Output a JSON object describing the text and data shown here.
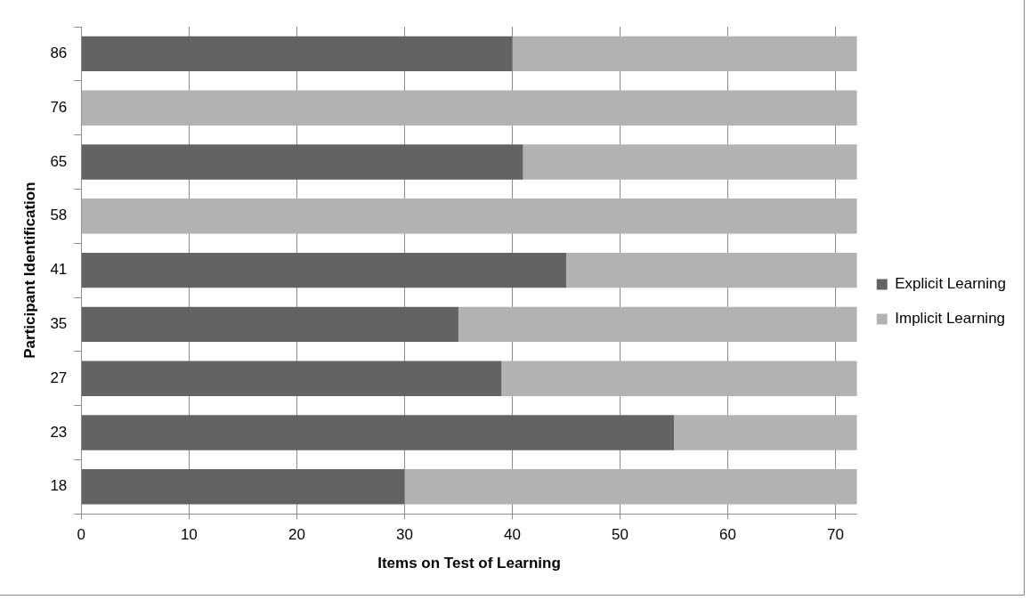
{
  "chart_data": {
    "type": "bar",
    "orientation": "horizontal",
    "stacked": true,
    "xlabel": "Items on Test of Learning",
    "ylabel": "Participant Identification",
    "categories": [
      "86",
      "76",
      "65",
      "58",
      "41",
      "35",
      "27",
      "23",
      "18"
    ],
    "series": [
      {
        "name": "Explicit Learning",
        "color": "#636363",
        "values": [
          40,
          0,
          41,
          0,
          45,
          35,
          39,
          55,
          30
        ]
      },
      {
        "name": "Implicit Learning",
        "color": "#b2b2b2",
        "values": [
          32,
          72,
          31,
          72,
          27,
          37,
          33,
          17,
          42
        ]
      }
    ],
    "xlim": [
      0,
      72
    ],
    "xticks": [
      0,
      10,
      20,
      30,
      40,
      50,
      60,
      70
    ],
    "grid": "x",
    "legend": "right"
  }
}
